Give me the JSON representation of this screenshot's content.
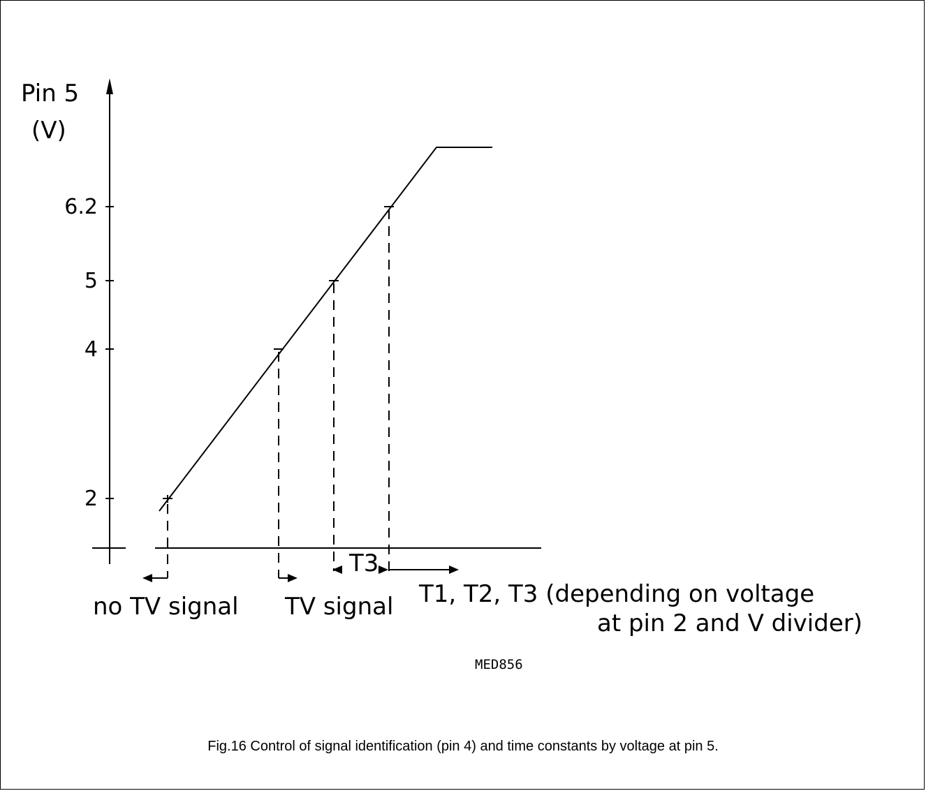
{
  "diagram": {
    "y_axis_label_line1": "Pin 5",
    "y_axis_label_line2": "(V)",
    "y_ticks": [
      "6.2",
      "5",
      "4",
      "2"
    ],
    "region_labels": {
      "no_tv_signal": "no TV signal",
      "tv_signal": "TV signal",
      "t3": "T3",
      "t1_t2_t3_line1": "T1, T2, T3 (depending on voltage",
      "t1_t2_t3_line2": "at pin 2 and V divider)"
    },
    "drawing_code": "MED856"
  },
  "caption": "Fig.16  Control of signal identification (pin 4) and time constants by voltage at pin 5."
}
